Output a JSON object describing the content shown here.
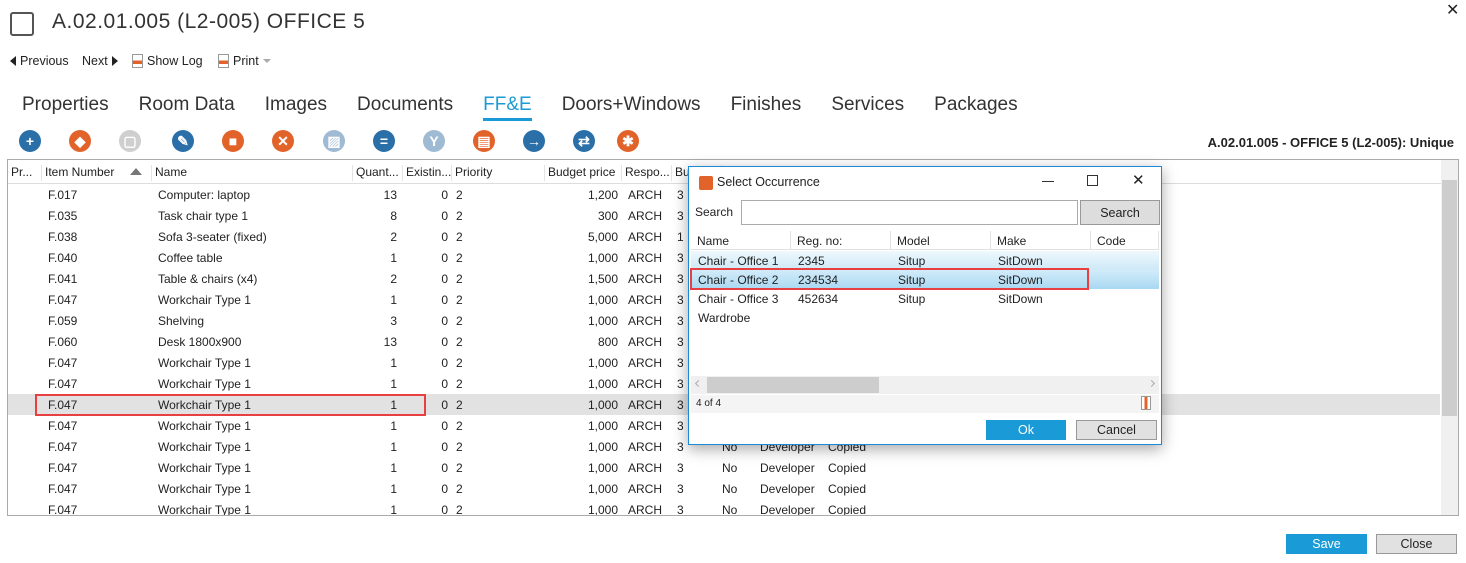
{
  "window": {
    "title": "A.02.01.005 (L2-005) OFFICE 5",
    "close": "✕"
  },
  "nav": {
    "previous": "Previous",
    "next": "Next",
    "show_log": "Show Log",
    "print": "Print"
  },
  "tabs": [
    "Properties",
    "Room Data",
    "Images",
    "Documents",
    "FF&E",
    "Doors+Windows",
    "Finishes",
    "Services",
    "Packages"
  ],
  "active_tab": "FF&E",
  "toolbar_icons": [
    {
      "name": "add-icon",
      "color": "#2b6fa8",
      "glyph": "+"
    },
    {
      "name": "shapes-icon",
      "color": "#e2632a",
      "glyph": "◆"
    },
    {
      "name": "box-disabled-icon",
      "color": "#cfcfcf",
      "glyph": "▢"
    },
    {
      "name": "edit-icon",
      "color": "#2b6fa8",
      "glyph": "✎"
    },
    {
      "name": "cube-icon",
      "color": "#e2632a",
      "glyph": "■"
    },
    {
      "name": "delete-icon",
      "color": "#e2632a",
      "glyph": "✕"
    },
    {
      "name": "hatched-disabled-icon",
      "color": "#9fbad3",
      "glyph": "▨"
    },
    {
      "name": "equals-icon",
      "color": "#2b6fa8",
      "glyph": "="
    },
    {
      "name": "merge-icon",
      "color": "#9fbad3",
      "glyph": "Y"
    },
    {
      "name": "document-shapes-icon",
      "color": "#e2632a",
      "glyph": "▤"
    },
    {
      "name": "arrow-right-icon",
      "color": "#2b6fa8",
      "glyph": "→"
    },
    {
      "name": "swap-icon",
      "color": "#2b6fa8",
      "glyph": "⇄"
    },
    {
      "name": "bug-icon",
      "color": "#e2632a",
      "glyph": "✱"
    }
  ],
  "context_label": "A.02.01.005 - OFFICE 5 (L2-005): Unique",
  "grid": {
    "columns": [
      "Pr...",
      "Item Number",
      "Name",
      "Quant...",
      "Existin...",
      "Priority",
      "Budget price",
      "Respo...",
      "Bu"
    ],
    "rows": [
      [
        "F.017",
        "Computer: laptop",
        "13",
        "0",
        "2",
        "1,200",
        "ARCH",
        "3",
        "",
        "",
        ""
      ],
      [
        "F.035",
        "Task chair type 1",
        "8",
        "0",
        "2",
        "300",
        "ARCH",
        "3",
        "",
        "",
        ""
      ],
      [
        "F.038",
        "Sofa 3-seater (fixed)",
        "2",
        "0",
        "2",
        "5,000",
        "ARCH",
        "1",
        "",
        "",
        ""
      ],
      [
        "F.040",
        "Coffee table",
        "1",
        "0",
        "2",
        "1,000",
        "ARCH",
        "3",
        "",
        "",
        ""
      ],
      [
        "F.041",
        "Table & chairs (x4)",
        "2",
        "0",
        "2",
        "1,500",
        "ARCH",
        "3",
        "",
        "",
        ""
      ],
      [
        "F.047",
        "Workchair Type 1",
        "1",
        "0",
        "2",
        "1,000",
        "ARCH",
        "3",
        "",
        "",
        ""
      ],
      [
        "F.059",
        "Shelving",
        "3",
        "0",
        "2",
        "1,000",
        "ARCH",
        "3",
        "",
        "",
        ""
      ],
      [
        "F.060",
        "Desk 1800x900",
        "13",
        "0",
        "2",
        "800",
        "ARCH",
        "3",
        "",
        "",
        ""
      ],
      [
        "F.047",
        "Workchair Type 1",
        "1",
        "0",
        "2",
        "1,000",
        "ARCH",
        "3",
        "",
        "",
        ""
      ],
      [
        "F.047",
        "Workchair Type 1",
        "1",
        "0",
        "2",
        "1,000",
        "ARCH",
        "3",
        "",
        "",
        ""
      ],
      [
        "F.047",
        "Workchair Type 1",
        "1",
        "0",
        "2",
        "1,000",
        "ARCH",
        "3",
        "",
        "",
        ""
      ],
      [
        "F.047",
        "Workchair Type 1",
        "1",
        "0",
        "2",
        "1,000",
        "ARCH",
        "3",
        "",
        "",
        ""
      ],
      [
        "F.047",
        "Workchair Type 1",
        "1",
        "0",
        "2",
        "1,000",
        "ARCH",
        "3",
        "No",
        "Developer",
        "Copied"
      ],
      [
        "F.047",
        "Workchair Type 1",
        "1",
        "0",
        "2",
        "1,000",
        "ARCH",
        "3",
        "No",
        "Developer",
        "Copied"
      ],
      [
        "F.047",
        "Workchair Type 1",
        "1",
        "0",
        "2",
        "1,000",
        "ARCH",
        "3",
        "No",
        "Developer",
        "Copied"
      ],
      [
        "F.047",
        "Workchair Type 1",
        "1",
        "0",
        "2",
        "1,000",
        "ARCH",
        "3",
        "No",
        "Developer",
        "Copied"
      ]
    ],
    "selected_row": 10
  },
  "dialog": {
    "title": "Select Occurrence",
    "search_label": "Search",
    "search_value": "",
    "search_button": "Search",
    "columns": [
      "Name",
      "Reg. no:",
      "Model",
      "Make",
      "Code"
    ],
    "rows": [
      [
        "Chair - Office 1",
        "2345",
        "Situp",
        "SitDown",
        ""
      ],
      [
        "Chair - Office 2",
        "234534",
        "Situp",
        "SitDown",
        ""
      ],
      [
        "Chair - Office 3",
        "452634",
        "Situp",
        "SitDown",
        ""
      ],
      [
        "Wardrobe",
        "",
        "",
        "",
        ""
      ]
    ],
    "selected_row": 1,
    "status": "4 of 4",
    "ok": "Ok",
    "cancel": "Cancel",
    "accent": "#1a9ad6"
  },
  "footer": {
    "save": "Save",
    "close": "Close"
  }
}
